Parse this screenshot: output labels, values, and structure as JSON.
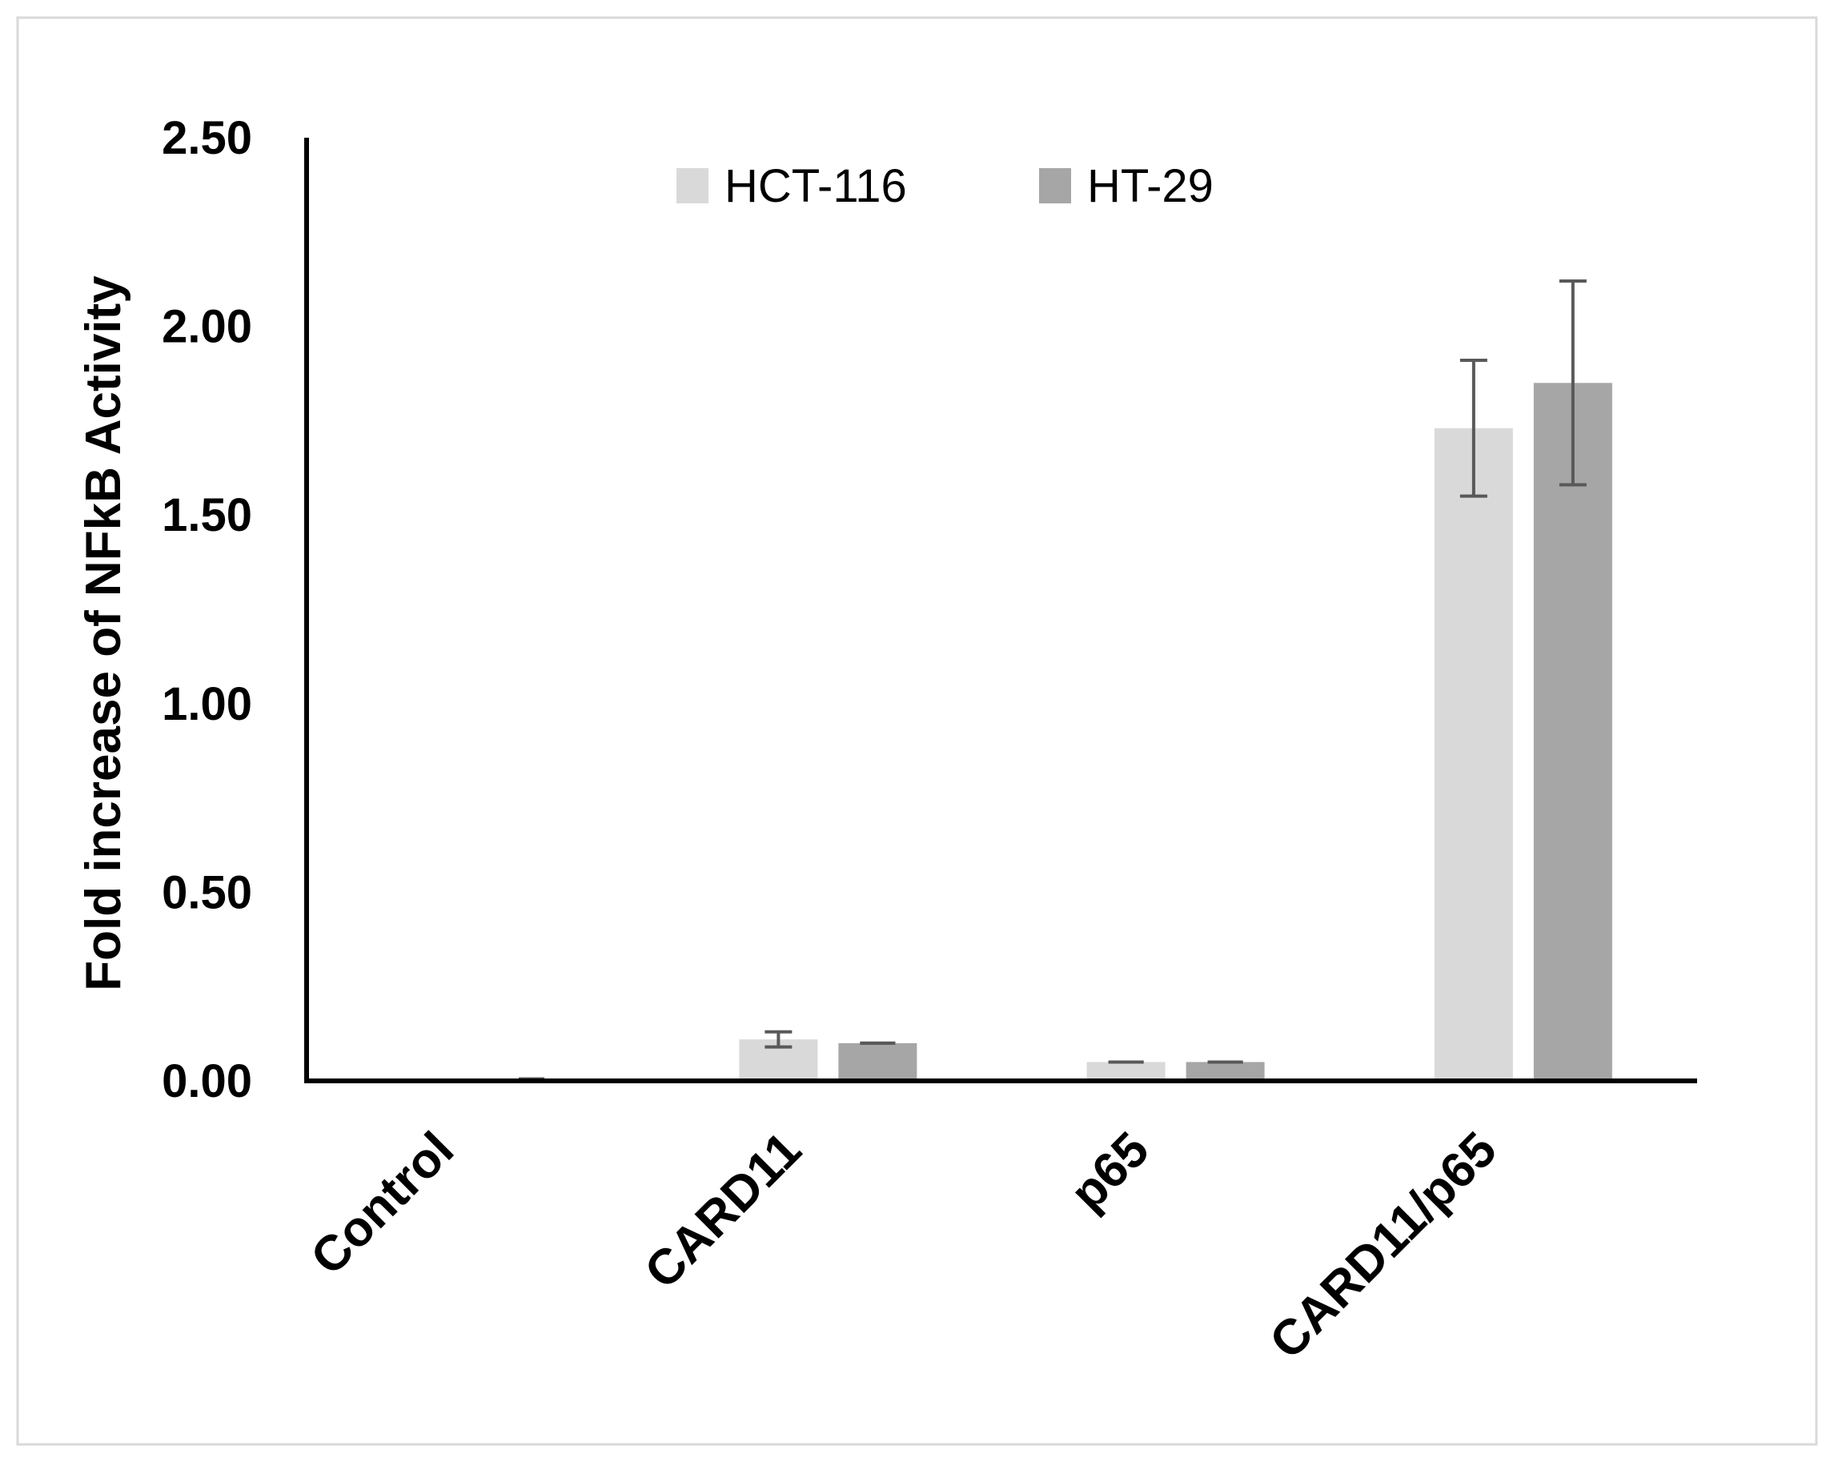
{
  "chart_data": {
    "type": "bar",
    "ylabel": "Fold increase of NFkB Activity",
    "xlabel": "",
    "ylim": [
      0,
      2.5
    ],
    "yticks": [
      "0.00",
      "0.50",
      "1.00",
      "1.50",
      "2.00",
      "2.50"
    ],
    "categories": [
      "Control",
      "CARD11",
      "p65",
      "CARD11/p65"
    ],
    "series": [
      {
        "name": "HCT-116",
        "color": "#d9d9d9",
        "values": [
          0.0,
          0.11,
          0.05,
          1.73
        ],
        "errors": [
          0.0,
          0.02,
          0.0,
          0.18
        ]
      },
      {
        "name": "HT-29",
        "color": "#a6a6a6",
        "values": [
          0.0,
          0.1,
          0.05,
          1.85
        ],
        "errors": [
          0.0,
          0.0,
          0.0,
          0.27
        ]
      }
    ],
    "grid": false,
    "legend": "top-center",
    "error_bar_color": "#595959"
  }
}
